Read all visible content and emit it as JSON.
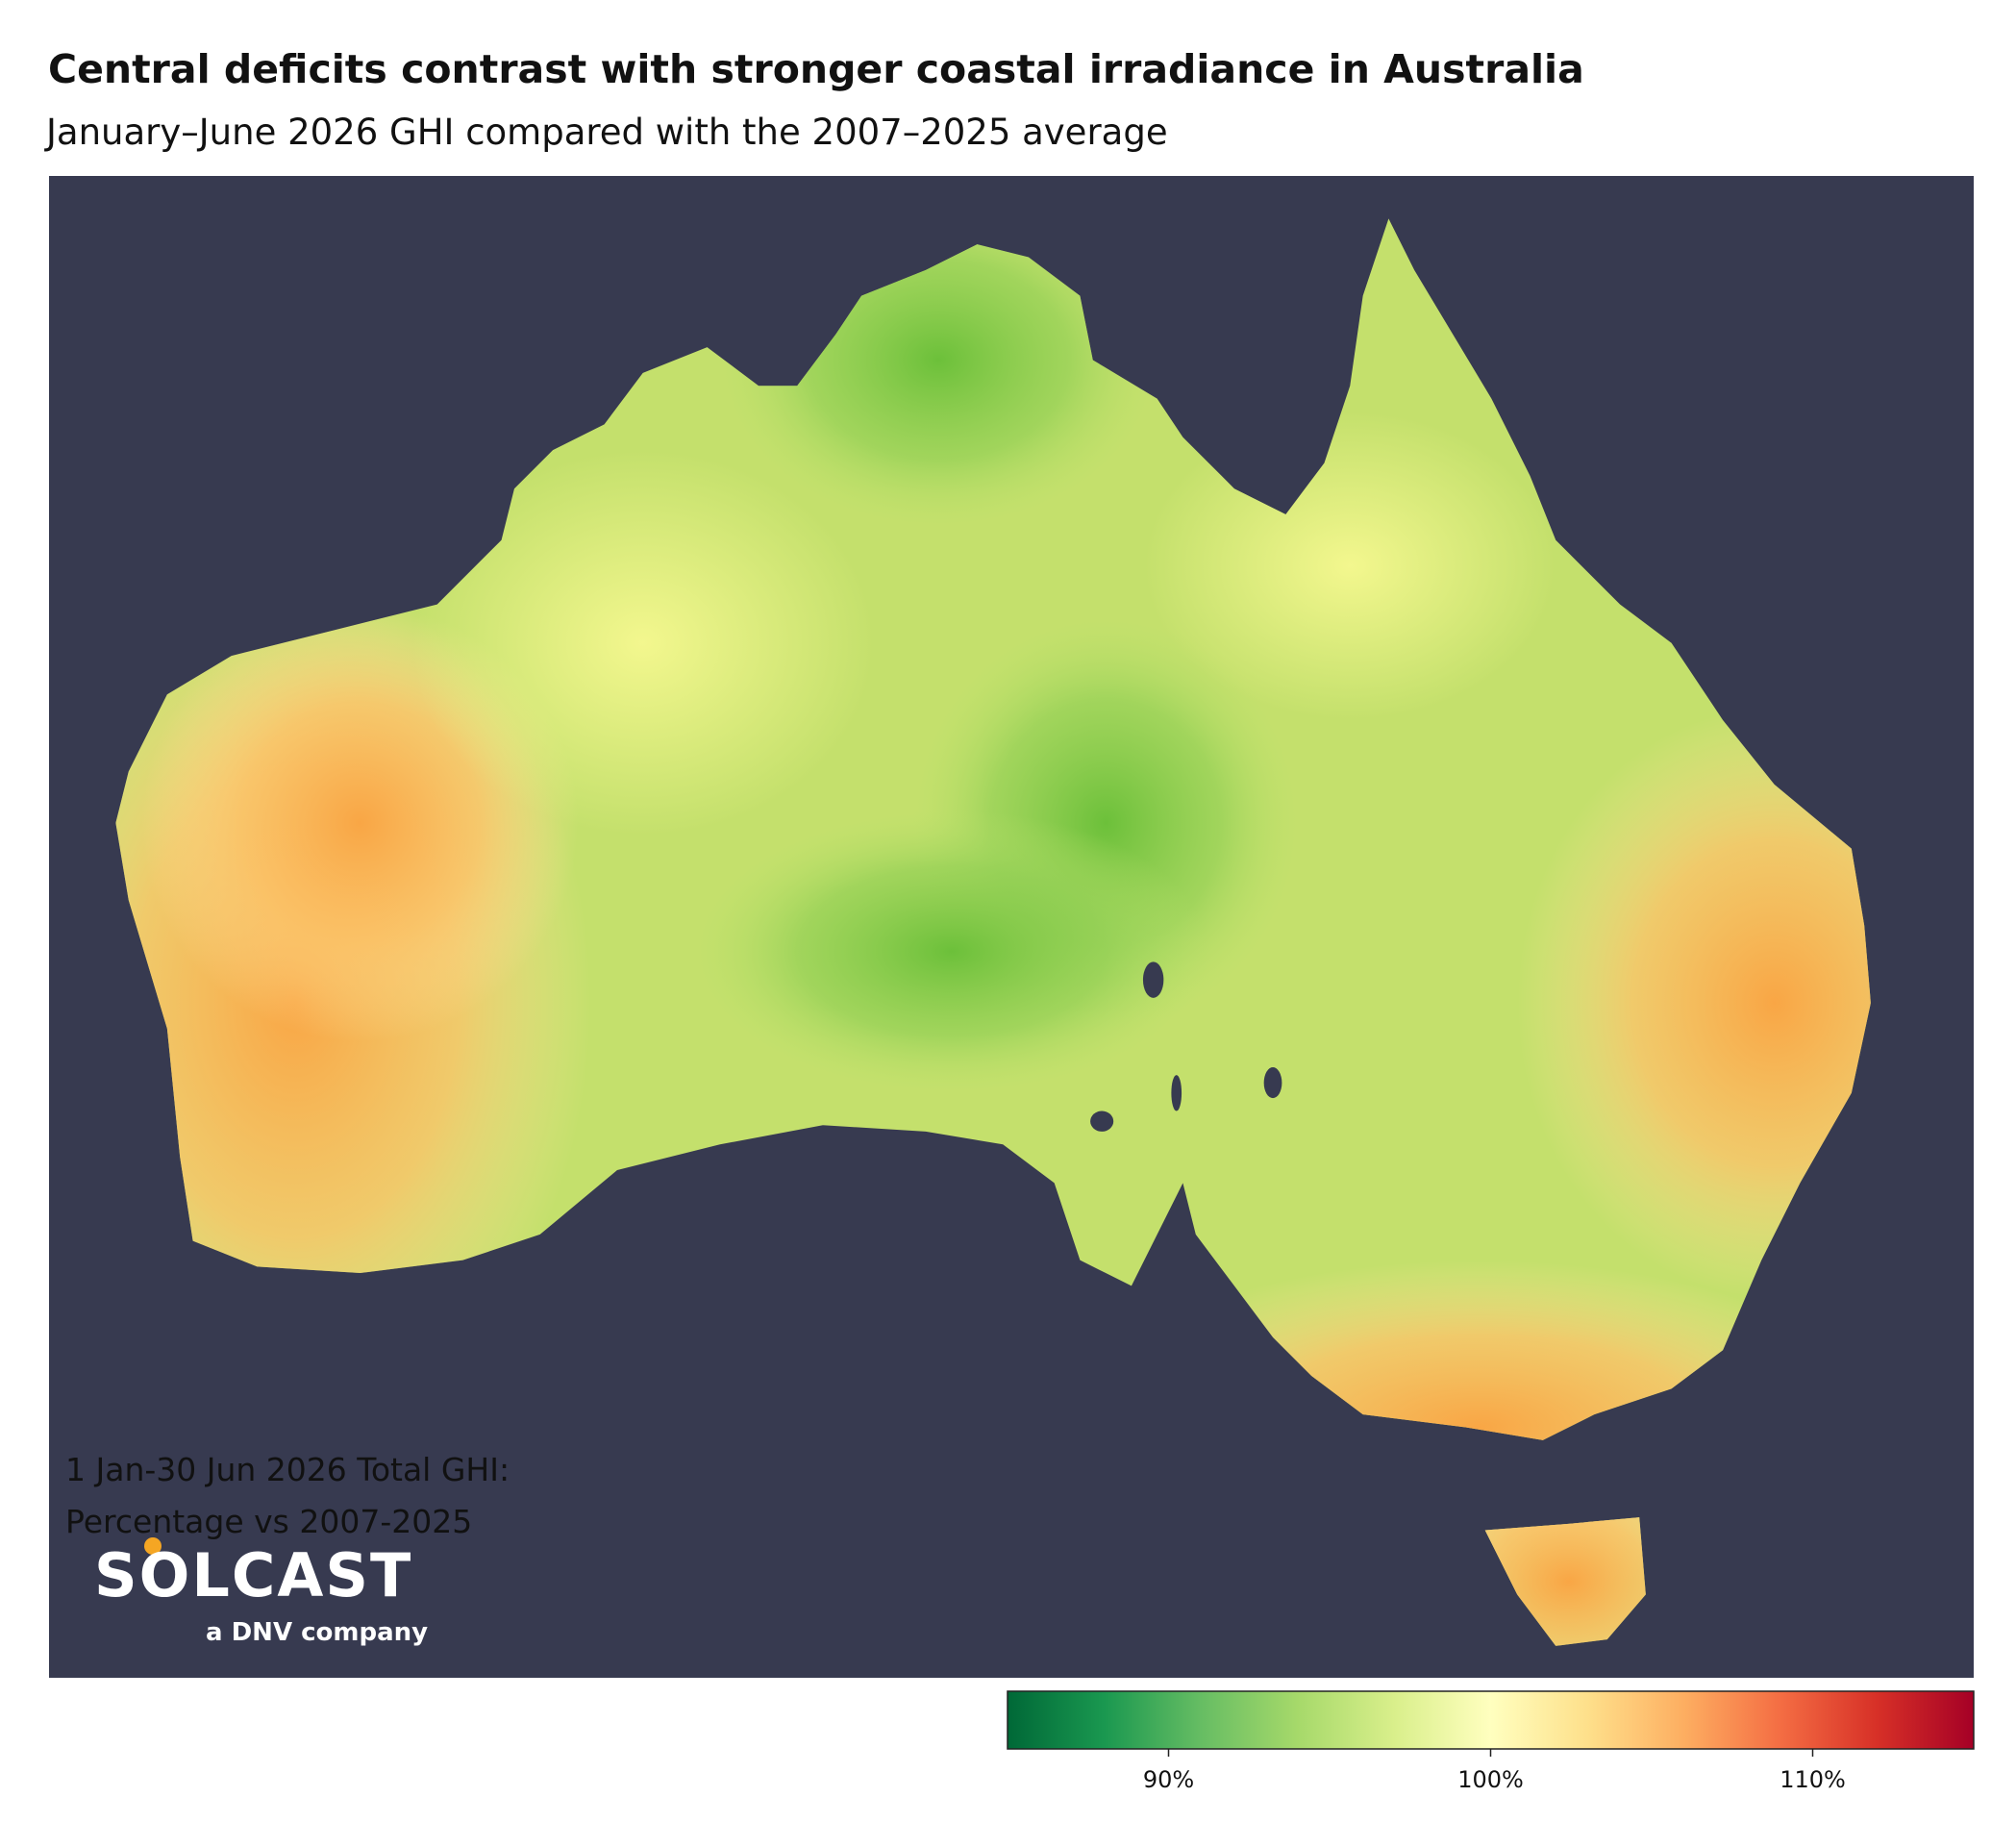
{
  "header": {
    "title": "Central deficits contrast with stronger coastal irradiance in Australia",
    "subtitle": "January–June 2026 GHI compared with the 2007–2025 average"
  },
  "logo": {
    "name": "SOLCAST",
    "tagline": "a DNV company"
  },
  "legend": {
    "title": [
      "1 Jan-30 Jun 2026 Total GHI:",
      "Percentage vs 2007-2025"
    ],
    "range": [
      85,
      115
    ],
    "ticks": [
      {
        "value": 90,
        "label": "90%"
      },
      {
        "value": 100,
        "label": "100%"
      },
      {
        "value": 110,
        "label": "110%"
      }
    ],
    "colors": [
      "#006837",
      "#1a9850",
      "#66bd63",
      "#a6d96a",
      "#d9ef8b",
      "#ffffbf",
      "#fee08b",
      "#fdae61",
      "#f46d43",
      "#d73027",
      "#a50026"
    ]
  }
}
